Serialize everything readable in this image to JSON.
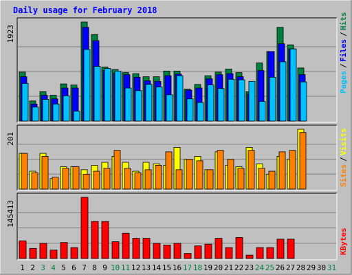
{
  "title": "Daily usage for February 2018",
  "colors": {
    "frame": "#c0c0c0",
    "title": "#0000ff",
    "plot_bg": "#c0c0c0",
    "grid": "#808080",
    "hits_back": "#008040",
    "files": "#0000ff",
    "pages": "#00c0ff",
    "visits": "#ffff00",
    "sites": "#ff8000",
    "kbytes": "#ff0000",
    "weekend_label": "#008040",
    "day_label": "#000000"
  },
  "chart_data": [
    {
      "type": "bar",
      "name": "hits-files-pages",
      "ymax_label": "1923",
      "ymax": 1923,
      "series": [
        {
          "name": "Hits",
          "values": [
            950,
            390,
            570,
            500,
            720,
            700,
            1923,
            1680,
            1050,
            1000,
            940,
            920,
            860,
            860,
            970,
            970,
            620,
            710,
            880,
            950,
            1010,
            940,
            570,
            1130,
            1350,
            1820,
            1480,
            1030
          ]
        },
        {
          "name": "Files",
          "values": [
            860,
            330,
            500,
            430,
            640,
            640,
            1820,
            1560,
            980,
            930,
            900,
            850,
            780,
            770,
            880,
            910,
            600,
            640,
            820,
            900,
            920,
            860,
            530,
            980,
            1350,
            1500,
            1400,
            900
          ]
        },
        {
          "name": "Pages",
          "values": [
            730,
            270,
            420,
            330,
            490,
            190,
            1390,
            1060,
            1020,
            970,
            640,
            590,
            710,
            660,
            510,
            880,
            430,
            360,
            700,
            630,
            810,
            800,
            770,
            380,
            850,
            1150,
            1400,
            760
          ]
        }
      ],
      "legend": [
        "Pages",
        "Files",
        "Hits"
      ]
    },
    {
      "type": "bar",
      "name": "visits-sites",
      "ymax_label": "201",
      "ymax": 201,
      "series": [
        {
          "name": "Visits",
          "values": [
            120,
            60,
            120,
            35,
            75,
            75,
            65,
            80,
            90,
            110,
            90,
            60,
            90,
            85,
            80,
            140,
            100,
            110,
            65,
            125,
            80,
            75,
            140,
            85,
            50,
            110,
            100,
            201
          ]
        },
        {
          "name": "Sites",
          "values": [
            120,
            55,
            110,
            40,
            70,
            75,
            50,
            60,
            70,
            130,
            70,
            55,
            65,
            80,
            125,
            65,
            100,
            95,
            65,
            130,
            100,
            70,
            130,
            70,
            60,
            125,
            130,
            190
          ]
        }
      ],
      "legend": [
        "Sites",
        "Visits"
      ]
    },
    {
      "type": "bar",
      "name": "kbytes",
      "ymax_label": "145413",
      "ymax": 145413,
      "series": [
        {
          "name": "KBytes",
          "values": [
            42000,
            24000,
            36000,
            20000,
            38000,
            26000,
            145413,
            88000,
            88000,
            40000,
            60000,
            48000,
            48000,
            36000,
            32000,
            36000,
            12000,
            30000,
            34000,
            48000,
            26000,
            50000,
            8000,
            26000,
            26000,
            46000,
            46000,
            0
          ]
        }
      ],
      "legend": [
        "KBytes"
      ]
    }
  ],
  "x_labels": [
    "1",
    "2",
    "3",
    "4",
    "5",
    "6",
    "7",
    "8",
    "9",
    "10",
    "11",
    "12",
    "13",
    "14",
    "15",
    "16",
    "17",
    "18",
    "19",
    "20",
    "21",
    "22",
    "23",
    "24",
    "25",
    "26",
    "27",
    "28",
    "29",
    "30",
    "31"
  ],
  "weekend_days": [
    3,
    4,
    10,
    11,
    17,
    18,
    24,
    25,
    31
  ]
}
